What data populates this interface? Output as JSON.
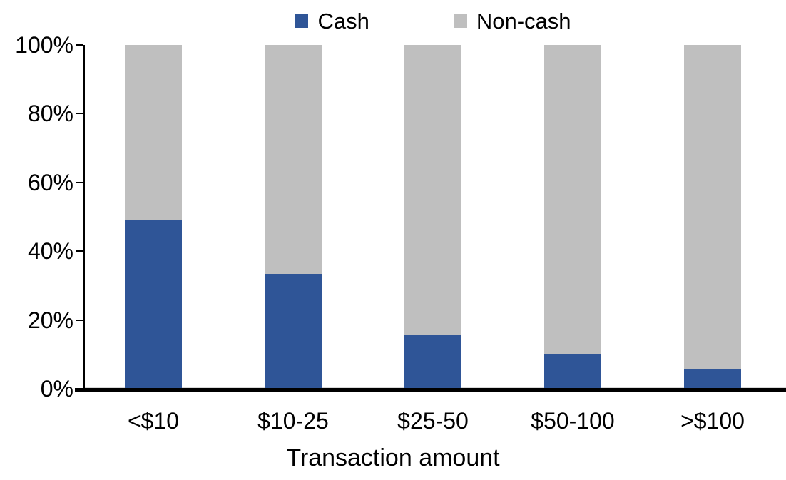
{
  "chart_data": {
    "type": "bar",
    "stacked": true,
    "percent_stacked": true,
    "title": "",
    "xlabel": "Transaction amount",
    "ylabel": "",
    "categories": [
      "<$10",
      "$10-25",
      "$25-50",
      "$50-100",
      ">$100"
    ],
    "series": [
      {
        "name": "Cash",
        "color": "#2F5597",
        "values": [
          49,
          33.5,
          15.5,
          10,
          5.5
        ]
      },
      {
        "name": "Non-cash",
        "color": "#BFBFBF",
        "values": [
          51,
          66.5,
          84.5,
          90,
          94.5
        ]
      }
    ],
    "ylim": [
      0,
      100
    ],
    "yticks": [
      "0%",
      "20%",
      "40%",
      "60%",
      "80%",
      "100%"
    ],
    "ytick_values": [
      0,
      20,
      40,
      60,
      80,
      100
    ],
    "legend_position": "top-center",
    "grid": false,
    "axis_color": "#000000",
    "zero_line_color": "#D9D9D9"
  }
}
